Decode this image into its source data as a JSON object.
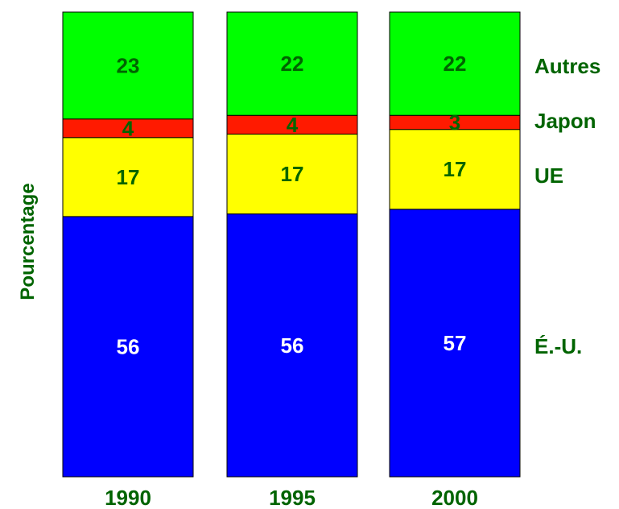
{
  "chart_data": {
    "type": "bar",
    "stacked": true,
    "percent": true,
    "categories": [
      "1990",
      "1995",
      "2000"
    ],
    "series": [
      {
        "name": "É.-U.",
        "values": [
          56,
          56,
          57
        ],
        "color": "#0000ff",
        "label_color": "#ffffff"
      },
      {
        "name": "UE",
        "values": [
          17,
          17,
          17
        ],
        "color": "#ffff00",
        "label_color": "#006400"
      },
      {
        "name": "Japon",
        "values": [
          4,
          4,
          3
        ],
        "color": "#ff1a00",
        "label_color": "#006400"
      },
      {
        "name": "Autres",
        "values": [
          23,
          22,
          22
        ],
        "color": "#00ff00",
        "label_color": "#006400"
      }
    ],
    "ylabel": "Pourcentage",
    "ylim": [
      0,
      100
    ],
    "legend_position": "right",
    "text_color": "#006400"
  }
}
